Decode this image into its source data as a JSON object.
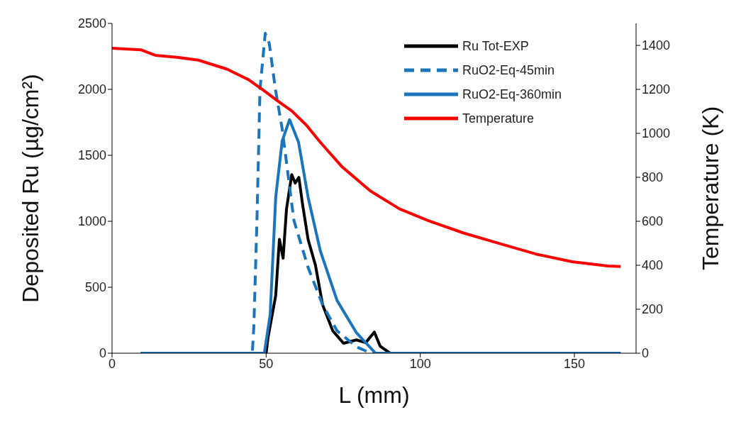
{
  "chart_data": {
    "type": "line",
    "xlabel": "L (mm)",
    "ylabel": "Deposited Ru (µg/cm²)",
    "y2label": "Temperature (K)",
    "xlim": [
      0,
      170
    ],
    "xticks": [
      0,
      50,
      100,
      150
    ],
    "ylim": [
      0,
      2500
    ],
    "yticks": [
      0,
      500,
      1000,
      1500,
      2000,
      2500
    ],
    "y2lim": [
      0,
      1500
    ],
    "y2ticks": [
      0,
      200,
      400,
      600,
      800,
      1000,
      1200,
      1400
    ],
    "grid": false,
    "legend": "top right",
    "marker": "none",
    "series": [
      {
        "name": "Ru Tot-EXP",
        "color": "#000000",
        "line_style": "solid",
        "x": [
          12.8,
          30,
          50,
          50.6,
          53.1,
          54.3,
          55.5,
          56.6,
          58.3,
          59.4,
          60.6,
          61.8,
          63.6,
          66,
          68.3,
          71.6,
          75.1,
          79.3,
          82.3,
          85.1,
          87,
          90.2,
          110,
          130,
          155.7
        ],
        "values": [
          0,
          0,
          0,
          117,
          437,
          863,
          720,
          1093,
          1354,
          1290,
          1333,
          1130,
          863,
          666,
          368,
          170,
          75,
          101,
          80,
          160,
          53,
          0,
          0,
          0,
          0
        ]
      },
      {
        "name": "RuO2-Eq-45min",
        "color": "#1b75bc",
        "line_style": "dashed",
        "x": [
          9.3,
          45.5,
          46,
          47,
          48,
          49.7,
          51,
          53,
          55.2,
          59,
          63.6,
          68.3,
          73,
          79.3,
          84,
          120,
          165
        ],
        "values": [
          0,
          0,
          200,
          1000,
          2000,
          2425,
          2350,
          2000,
          1700,
          1007,
          650,
          368,
          170,
          48,
          0,
          0,
          0
        ]
      },
      {
        "name": "RuO2-Eq-360min",
        "color": "#1b75bc",
        "line_style": "solid",
        "x": [
          9.3,
          49.4,
          51.3,
          53.1,
          55.2,
          57.6,
          60.5,
          63.6,
          67.6,
          73,
          79.3,
          85.5,
          120,
          165
        ],
        "values": [
          0,
          0,
          293,
          1183,
          1610,
          1770,
          1600,
          1183,
          773,
          400,
          155,
          0,
          0,
          0
        ]
      },
      {
        "name": "Temperature",
        "color": "#ff0000",
        "line_style": "solid",
        "axis": "y2",
        "x": [
          0,
          9.3,
          14,
          21,
          28,
          37.3,
          44.3,
          49,
          53.6,
          58.3,
          63,
          67.6,
          74.6,
          83.9,
          93.2,
          102.6,
          114.2,
          125.9,
          137.5,
          149.2,
          160.8,
          165
        ],
        "values": [
          1387,
          1380,
          1355,
          1346,
          1333,
          1292,
          1244,
          1197,
          1149,
          1102,
          1038,
          959,
          848,
          737,
          657,
          603,
          546,
          498,
          451,
          416,
          397,
          394
        ]
      }
    ]
  }
}
